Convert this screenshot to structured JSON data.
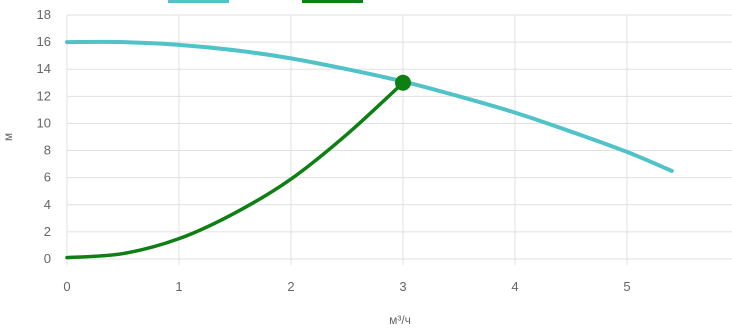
{
  "chart_data": {
    "type": "line",
    "xlabel": "м³/ч",
    "ylabel": "м",
    "xlim": [
      0,
      6
    ],
    "ylim": [
      0,
      18
    ],
    "x_ticks": [
      "0",
      "1",
      "2",
      "3",
      "4",
      "5"
    ],
    "y_ticks": [
      "0",
      "2",
      "4",
      "6",
      "8",
      "10",
      "12",
      "14",
      "16",
      "18"
    ],
    "grid": true,
    "legend_position": "top",
    "series": [
      {
        "color": "#4fc3c7",
        "x": [
          0,
          0.5,
          1.0,
          1.5,
          2.0,
          2.5,
          3.0,
          3.5,
          4.0,
          4.5,
          5.0,
          5.4
        ],
        "y": [
          16.0,
          16.0,
          15.8,
          15.4,
          14.8,
          14.0,
          13.1,
          12.0,
          10.8,
          9.4,
          7.9,
          6.5
        ]
      },
      {
        "color": "#0e7f12",
        "x": [
          0,
          0.5,
          1.0,
          1.5,
          2.0,
          2.5,
          3.0
        ],
        "y": [
          0.1,
          0.4,
          1.5,
          3.4,
          5.9,
          9.2,
          13.0
        ]
      }
    ],
    "operating_point": {
      "x": 3.0,
      "y": 13.0,
      "color": "#0e7f12"
    }
  }
}
